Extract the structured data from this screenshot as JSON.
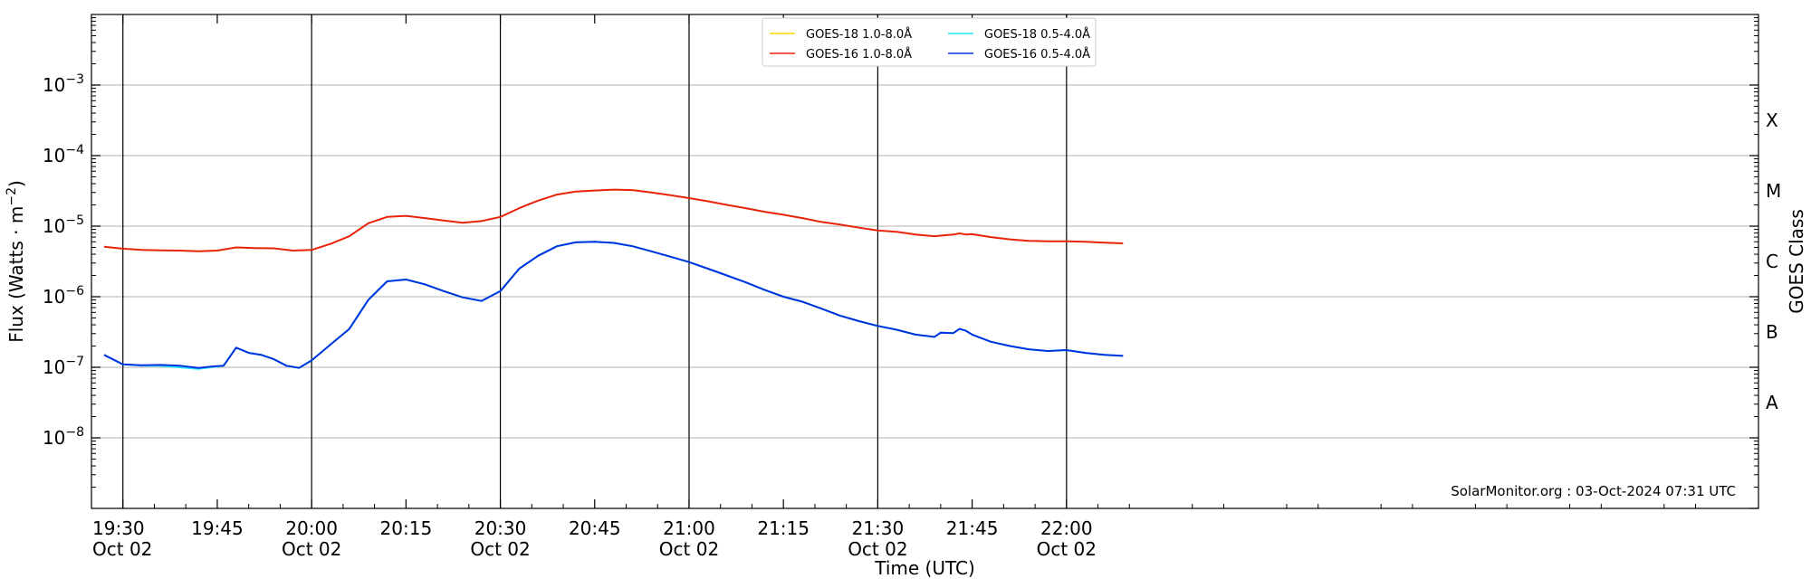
{
  "chart_data": {
    "type": "line",
    "x_domain_minutes": [
      -5,
      260
    ],
    "x_ticks": [
      {
        "m": 0,
        "time": "19:30",
        "date": "Oct 02"
      },
      {
        "m": 15,
        "time": "19:45",
        "date": ""
      },
      {
        "m": 30,
        "time": "20:00",
        "date": "Oct 02"
      },
      {
        "m": 45,
        "time": "20:15",
        "date": ""
      },
      {
        "m": 60,
        "time": "20:30",
        "date": "Oct 02"
      },
      {
        "m": 75,
        "time": "20:45",
        "date": ""
      },
      {
        "m": 90,
        "time": "21:00",
        "date": "Oct 02"
      },
      {
        "m": 105,
        "time": "21:15",
        "date": ""
      },
      {
        "m": 120,
        "time": "21:30",
        "date": "Oct 02"
      },
      {
        "m": 135,
        "time": "21:45",
        "date": ""
      },
      {
        "m": 150,
        "time": "22:00",
        "date": "Oct 02"
      }
    ],
    "xlabel": "Time (UTC)",
    "ylabel": "Flux (Watts · m",
    "ylabel_exp": "−2",
    "ylabel_close": ")",
    "yscale": "log",
    "ylim": [
      1e-09,
      0.01
    ],
    "y_ticks": [
      {
        "v": 0.001,
        "base": "10",
        "exp": "−3"
      },
      {
        "v": 0.0001,
        "base": "10",
        "exp": "−4"
      },
      {
        "v": 1e-05,
        "base": "10",
        "exp": "−5"
      },
      {
        "v": 1e-06,
        "base": "10",
        "exp": "−6"
      },
      {
        "v": 1e-07,
        "base": "10",
        "exp": "−7"
      },
      {
        "v": 1e-08,
        "base": "10",
        "exp": "−8"
      }
    ],
    "right_axis_label": "GOES Class",
    "goes_classes": [
      {
        "label": "X",
        "v": 0.000316
      },
      {
        "label": "M",
        "v": 3.16e-05
      },
      {
        "label": "C",
        "v": 3.16e-06
      },
      {
        "label": "B",
        "v": 3.16e-07
      },
      {
        "label": "A",
        "v": 3.16e-08
      }
    ],
    "vlines_minutes": [
      0,
      30,
      60,
      90,
      120,
      150
    ],
    "grid": "horizontal at decades",
    "legend_position": "top-center",
    "legend": [
      {
        "name": "GOES-18 1.0-8.0Å",
        "color": "#ffd700"
      },
      {
        "name": "GOES-16 1.0-8.0Å",
        "color": "#e8230a"
      },
      {
        "name": "GOES-18 0.5-4.0Å",
        "color": "#1ee8ff"
      },
      {
        "name": "GOES-16 0.5-4.0Å",
        "color": "#0033dd"
      }
    ],
    "series": [
      {
        "name": "GOES-16 1.0-8.0Å",
        "color": "#e8230a",
        "x_minutes": [
          -3,
          0,
          3,
          6,
          9,
          12,
          15,
          18,
          21,
          24,
          27,
          30,
          33,
          36,
          39,
          42,
          45,
          48,
          51,
          54,
          57,
          60,
          63,
          66,
          69,
          72,
          75,
          78,
          81,
          84,
          87,
          90,
          93,
          96,
          99,
          102,
          105,
          108,
          111,
          114,
          117,
          120,
          123,
          126,
          129,
          132,
          133,
          134,
          135,
          138,
          141,
          144,
          147,
          150,
          153,
          156,
          159
        ],
        "y": [
          5.1e-06,
          4.8e-06,
          4.6e-06,
          4.55e-06,
          4.5e-06,
          4.4e-06,
          4.5e-06,
          5e-06,
          4.9e-06,
          4.85e-06,
          4.5e-06,
          4.6e-06,
          5.6e-06,
          7.2e-06,
          1.1e-05,
          1.35e-05,
          1.4e-05,
          1.3e-05,
          1.2e-05,
          1.12e-05,
          1.18e-05,
          1.35e-05,
          1.8e-05,
          2.3e-05,
          2.8e-05,
          3.1e-05,
          3.2e-05,
          3.3e-05,
          3.25e-05,
          3e-05,
          2.75e-05,
          2.5e-05,
          2.25e-05,
          2e-05,
          1.8e-05,
          1.6e-05,
          1.45e-05,
          1.3e-05,
          1.15e-05,
          1.05e-05,
          9.5e-06,
          8.7e-06,
          8.3e-06,
          7.6e-06,
          7.2e-06,
          7.6e-06,
          7.9e-06,
          7.6e-06,
          7.7e-06,
          7e-06,
          6.5e-06,
          6.2e-06,
          6.1e-06,
          6.1e-06,
          6e-06,
          5.85e-06,
          5.7e-06
        ]
      },
      {
        "name": "GOES-18 0.5-4.0Å",
        "color": "#1ee8ff",
        "x_minutes": [
          -3,
          0,
          3,
          6,
          9,
          12,
          14,
          16,
          18,
          20,
          22,
          24,
          26,
          28,
          30,
          33,
          36,
          39,
          42,
          45,
          48,
          51,
          54,
          57,
          60,
          63,
          66,
          69,
          72,
          75,
          78,
          81,
          84,
          87,
          90,
          93,
          96,
          99,
          102,
          105,
          108,
          111,
          114,
          117,
          120,
          123,
          126,
          129,
          130,
          132,
          133,
          134,
          135,
          138,
          141,
          144,
          147,
          150,
          153,
          156,
          159
        ],
        "y": [
          1.5e-07,
          1.1e-07,
          1.05e-07,
          1.05e-07,
          1e-07,
          9.5e-08,
          1e-07,
          1.05e-07,
          1.9e-07,
          1.6e-07,
          1.5e-07,
          1.3e-07,
          1.05e-07,
          9.8e-08,
          1.25e-07,
          2.1e-07,
          3.5e-07,
          9e-07,
          1.65e-06,
          1.75e-06,
          1.5e-06,
          1.2e-06,
          9.8e-07,
          8.7e-07,
          1.2e-06,
          2.5e-06,
          3.8e-06,
          5.2e-06,
          5.9e-06,
          6e-06,
          5.8e-06,
          5.2e-06,
          4.4e-06,
          3.7e-06,
          3.1e-06,
          2.5e-06,
          2e-06,
          1.6e-06,
          1.25e-06,
          1e-06,
          8.5e-07,
          6.8e-07,
          5.4e-07,
          4.5e-07,
          3.85e-07,
          3.4e-07,
          2.9e-07,
          2.7e-07,
          3.1e-07,
          3.05e-07,
          3.5e-07,
          3.3e-07,
          2.9e-07,
          2.3e-07,
          2e-07,
          1.8e-07,
          1.7e-07,
          1.75e-07,
          1.6e-07,
          1.5e-07,
          1.45e-07
        ]
      },
      {
        "name": "GOES-16 0.5-4.0Å",
        "color": "#0033dd",
        "x_minutes": [
          -3,
          0,
          3,
          6,
          9,
          12,
          14,
          16,
          18,
          20,
          22,
          24,
          26,
          28,
          30,
          33,
          36,
          39,
          42,
          45,
          48,
          51,
          54,
          57,
          60,
          63,
          66,
          69,
          72,
          75,
          78,
          81,
          84,
          87,
          90,
          93,
          96,
          99,
          102,
          105,
          108,
          111,
          114,
          117,
          120,
          123,
          126,
          129,
          130,
          132,
          133,
          134,
          135,
          138,
          141,
          144,
          147,
          150,
          153,
          156,
          159
        ],
        "y": [
          1.5e-07,
          1.1e-07,
          1.07e-07,
          1.08e-07,
          1.05e-07,
          9.8e-08,
          1.02e-07,
          1.05e-07,
          1.9e-07,
          1.6e-07,
          1.5e-07,
          1.3e-07,
          1.05e-07,
          9.8e-08,
          1.25e-07,
          2.1e-07,
          3.5e-07,
          9e-07,
          1.65e-06,
          1.75e-06,
          1.5e-06,
          1.2e-06,
          9.8e-07,
          8.7e-07,
          1.2e-06,
          2.5e-06,
          3.8e-06,
          5.2e-06,
          5.9e-06,
          6e-06,
          5.8e-06,
          5.2e-06,
          4.4e-06,
          3.7e-06,
          3.1e-06,
          2.5e-06,
          2e-06,
          1.6e-06,
          1.25e-06,
          1e-06,
          8.5e-07,
          6.8e-07,
          5.4e-07,
          4.5e-07,
          3.85e-07,
          3.4e-07,
          2.9e-07,
          2.7e-07,
          3.1e-07,
          3.05e-07,
          3.5e-07,
          3.3e-07,
          2.9e-07,
          2.3e-07,
          2e-07,
          1.8e-07,
          1.7e-07,
          1.75e-07,
          1.6e-07,
          1.5e-07,
          1.45e-07
        ]
      }
    ],
    "credit": "SolarMonitor.org : 03-Oct-2024 07:31 UTC"
  }
}
